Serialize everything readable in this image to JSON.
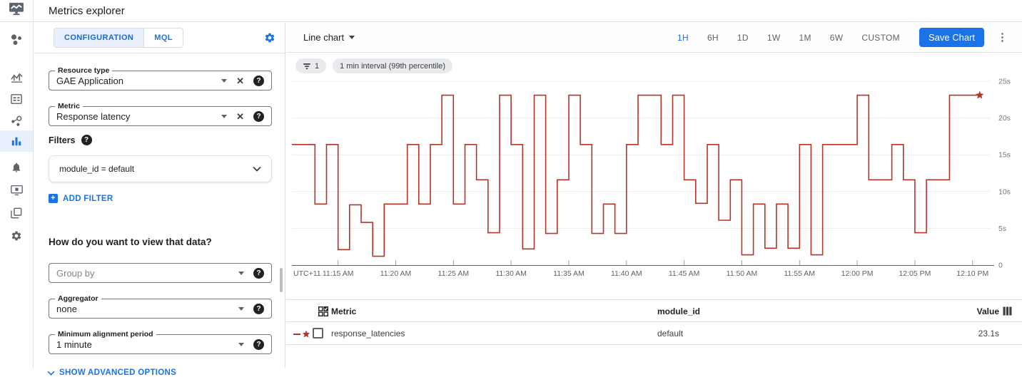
{
  "header": {
    "title": "Metrics explorer"
  },
  "sidebar": {
    "active_item": "metrics-explorer",
    "icons": [
      "cluster-icon",
      "trend-chart-icon",
      "dashboard-card-icon",
      "node-graph-icon",
      "bar-chart-icon",
      "bell-icon",
      "monitor-icon",
      "copy-layers-icon",
      "gear-icon"
    ]
  },
  "config": {
    "tabs": [
      {
        "label": "CONFIGURATION",
        "active": true
      },
      {
        "label": "MQL",
        "active": false
      }
    ],
    "resource_type": {
      "label": "Resource type",
      "value": "GAE Application"
    },
    "metric": {
      "label": "Metric",
      "value": "Response latency"
    },
    "filters_label": "Filters",
    "filter_value": "module_id = default",
    "add_filter_label": "ADD FILTER",
    "view_heading": "How do you want to view that data?",
    "group_by": {
      "placeholder": "Group by"
    },
    "aggregator": {
      "label": "Aggregator",
      "value": "none"
    },
    "min_alignment": {
      "label": "Minimum alignment period",
      "value": "1 minute"
    },
    "show_advanced_label": "SHOW ADVANCED OPTIONS"
  },
  "toolbar": {
    "chart_type_label": "Line chart",
    "ranges": [
      "1H",
      "6H",
      "1D",
      "1W",
      "1M",
      "6W",
      "CUSTOM"
    ],
    "active_range": "1H",
    "save_label": "Save Chart"
  },
  "chips": {
    "filter_count": "1",
    "interval_label": "1 min interval (99th percentile)"
  },
  "chart_data": {
    "type": "line",
    "subtype": "step-after",
    "title": "",
    "unit": "seconds",
    "ylim": [
      0,
      25
    ],
    "grid": true,
    "end_marker": "star",
    "y_ticks": [
      {
        "v": 25,
        "label": "25s"
      },
      {
        "v": 20,
        "label": "20s"
      },
      {
        "v": 15,
        "label": "15s"
      },
      {
        "v": 10,
        "label": "10s"
      },
      {
        "v": 5,
        "label": "5s"
      },
      {
        "v": 0,
        "label": "0"
      }
    ],
    "x_axis_prefix": "UTC+11",
    "x_start_label": "11:11 AM",
    "x_interval_minutes": 1,
    "x_tick_minute_offsets": [
      4,
      9,
      14,
      19,
      24,
      29,
      34,
      39,
      44,
      49,
      54,
      59
    ],
    "x_tick_labels": [
      "11:15 AM",
      "11:20 AM",
      "11:25 AM",
      "11:30 AM",
      "11:35 AM",
      "11:40 AM",
      "11:45 AM",
      "11:50 AM",
      "11:55 AM",
      "12:00 PM",
      "12:05 PM",
      "12:10 PM"
    ],
    "series": [
      {
        "name": "response_latencies",
        "module_id": "default",
        "color": "#b3362b",
        "values": [
          16.4,
          16.4,
          8.3,
          16.4,
          2.1,
          8.2,
          5.8,
          1.2,
          8.3,
          8.3,
          16.4,
          8.3,
          16.4,
          23.1,
          8.3,
          16.4,
          11.6,
          4.4,
          23.1,
          16.4,
          2.2,
          23.1,
          4.3,
          11.6,
          23.1,
          16.4,
          4.3,
          8.3,
          4.3,
          16.4,
          23.1,
          23.1,
          16.4,
          23.1,
          11.6,
          8.4,
          16.4,
          6.1,
          11.6,
          1.4,
          8.3,
          2.3,
          8.3,
          2.3,
          16.4,
          1.4,
          16.4,
          16.4,
          16.4,
          23.1,
          11.6,
          11.6,
          16.4,
          11.6,
          4.4,
          11.6,
          11.6,
          23.1,
          23.1,
          23.1
        ]
      }
    ]
  },
  "table": {
    "headers": {
      "metric": "Metric",
      "module_id": "module_id",
      "value": "Value"
    },
    "rows": [
      {
        "metric": "response_latencies",
        "module_id": "default",
        "value": "23.1s"
      }
    ]
  },
  "colors": {
    "accent": "#1a73e8",
    "active_tab_bg": "#e8f0fe",
    "line_red": "#b3362b"
  }
}
